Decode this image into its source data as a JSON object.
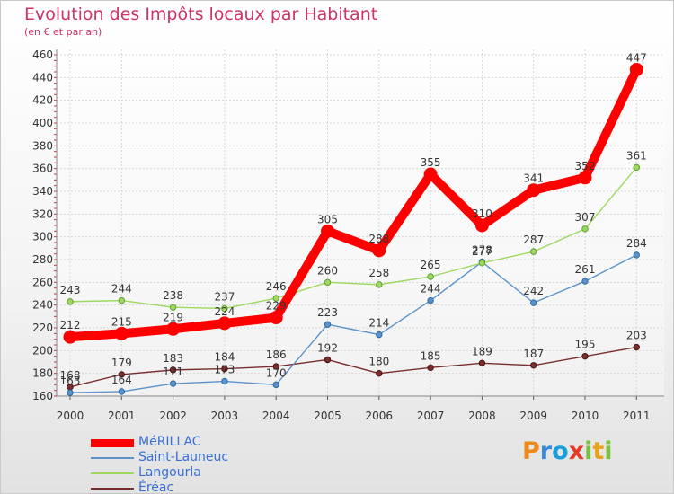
{
  "title": "Evolution des Impôts locaux par Habitant",
  "subtitle": "(en € et par an)",
  "logo": {
    "chars": [
      "P",
      "r",
      "o",
      "x",
      "i",
      "t",
      "i"
    ],
    "colors": [
      "#ee8a1c",
      "#3a8ad8",
      "#1aa0d8",
      "#e23a2a",
      "#7bc043",
      "#e8a21a",
      "#7bc043"
    ]
  },
  "chart_data": {
    "type": "line",
    "title": "Evolution des Impôts locaux par Habitant",
    "subtitle": "(en € et par an)",
    "categories": [
      "2000",
      "2001",
      "2002",
      "2003",
      "2004",
      "2005",
      "2006",
      "2007",
      "2008",
      "2009",
      "2010",
      "2011"
    ],
    "ylim": [
      160,
      460
    ],
    "yticks": [
      160,
      180,
      200,
      220,
      240,
      260,
      280,
      300,
      320,
      340,
      360,
      380,
      400,
      420,
      440,
      460
    ],
    "grid": true,
    "legend_position": "bottom-left",
    "series": [
      {
        "name": "MéRILLAC",
        "color": "#ff0000",
        "values": [
          212,
          215,
          219,
          224,
          229,
          305,
          288,
          355,
          310,
          341,
          352,
          447
        ],
        "labels": [
          "212",
          "215",
          "219",
          "224",
          "229",
          "305",
          "288",
          "355",
          "310",
          "341",
          "352",
          "447"
        ]
      },
      {
        "name": "Saint-Launeuc",
        "color": "#5b93c8",
        "values": [
          163,
          164,
          171,
          173,
          170,
          223,
          214,
          244,
          278,
          242,
          261,
          284
        ],
        "labels": [
          "163",
          "164",
          "171",
          "173",
          "170",
          "223",
          "214",
          "244",
          "278",
          "242",
          "261",
          "284"
        ]
      },
      {
        "name": "Langourla",
        "color": "#9ed860",
        "values": [
          243,
          244,
          238,
          237,
          246,
          260,
          258,
          265,
          277,
          287,
          307,
          361
        ],
        "labels": [
          "243",
          "244",
          "238",
          "237",
          "246",
          "260",
          "258",
          "265",
          "277",
          "287",
          "307",
          "361"
        ]
      },
      {
        "name": "Éréac",
        "color": "#7a2e2e",
        "values": [
          168,
          179,
          183,
          184,
          186,
          192,
          180,
          185,
          189,
          187,
          195,
          203
        ],
        "labels": [
          "168",
          "179",
          "183",
          "184",
          "186",
          "192",
          "180",
          "185",
          "189",
          "187",
          "195",
          "203"
        ]
      }
    ]
  }
}
